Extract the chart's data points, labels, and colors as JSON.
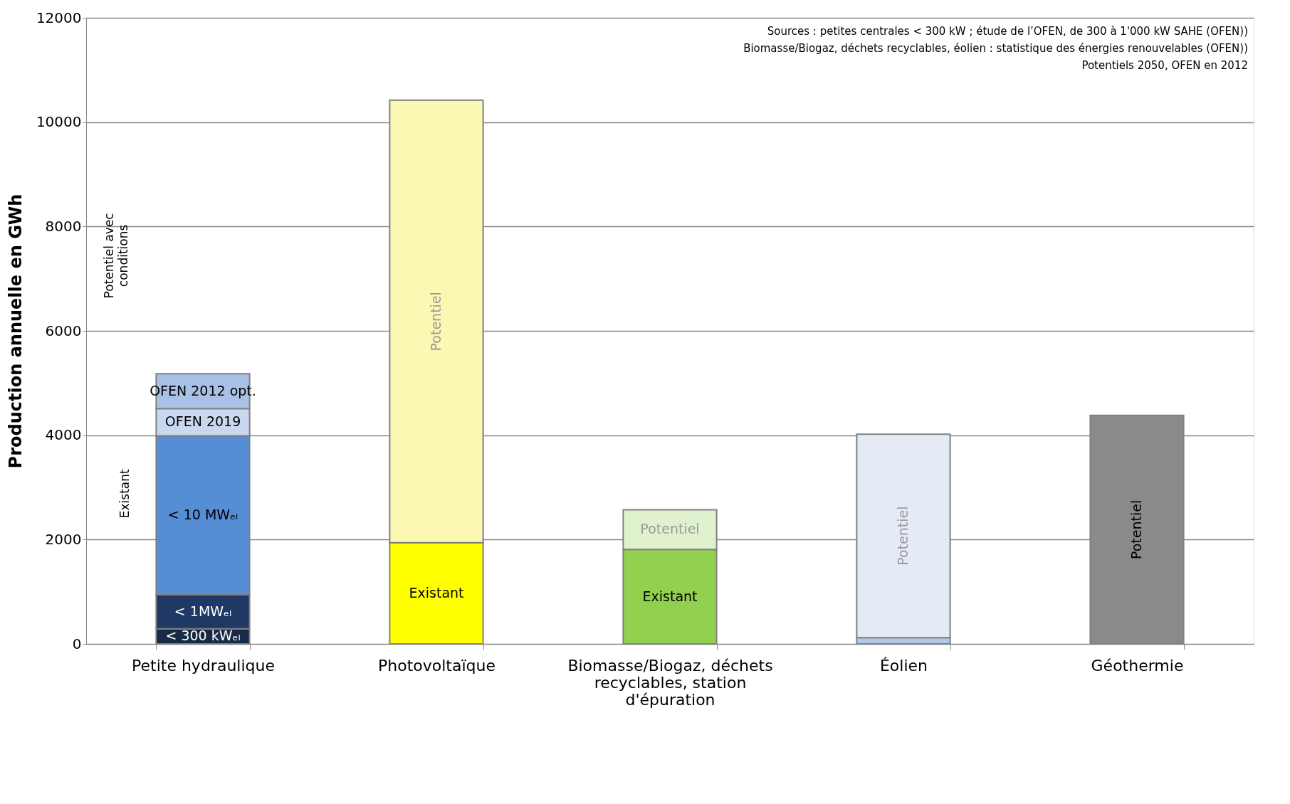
{
  "chart_data": {
    "type": "bar",
    "stacked": true,
    "ylabel": "Production annuelle en GWh",
    "categories": [
      "Petite hydraulique",
      "Photovoltaïque",
      "Biomasse/Biogaz, déchets recyclables, station d'épuration",
      "Éolien",
      "Géothermie"
    ],
    "series": [
      {
        "colors": [
          "#172a47",
          "#ffff00",
          "#92d050",
          "#b4c7e7",
          null
        ],
        "values": [
          290,
          1940,
          1810,
          120,
          null
        ],
        "value_labels": [
          "< 300 kWₑₗ",
          "Existant",
          "Existant",
          null,
          null
        ]
      },
      {
        "colors": [
          "#1f3864",
          null,
          null,
          null,
          null
        ],
        "values": [
          650,
          null,
          null,
          null,
          null
        ],
        "value_labels": [
          "< 1MWₑₗ",
          null,
          null,
          null,
          null
        ]
      },
      {
        "colors": [
          "#558ed5",
          null,
          null,
          null,
          null
        ],
        "values": [
          3050,
          null,
          null,
          null,
          null
        ],
        "value_labels": [
          "< 10 MWₑₗ",
          null,
          null,
          null,
          null
        ]
      },
      {
        "colors": [
          "#c9d8ef",
          "#fbf8b4",
          "#e0f2cd",
          "#e4ebf6",
          "#8a8a8a"
        ],
        "values": [
          520,
          8480,
          760,
          3900,
          4380
        ],
        "value_labels": [
          "OFEN 2019",
          "Potentiel",
          "Potentiel",
          "Potentiel",
          "Potentiel"
        ]
      },
      {
        "colors": [
          "#a9c1e6",
          null,
          null,
          null,
          null
        ],
        "values": [
          670,
          null,
          null,
          null,
          null
        ],
        "value_labels": [
          "OFEN 2012 opt.",
          null,
          null,
          null,
          null
        ]
      }
    ],
    "ylim": [
      0,
      12000
    ],
    "yticks": [
      0,
      2000,
      4000,
      6000,
      8000,
      10000,
      12000
    ],
    "grid": "y",
    "annotations": [
      "Potentiel avec conditions",
      "Existant",
      "Sources : petites centrales < 300 kW ; étude de l’OFEN, de 300 à 1'000 kW SAHE (OFEN))",
      "Biomasse/Biogaz, déchets recyclables, éolien : statistique des énergies renouvelables (OFEN))",
      "Potentiels 2050, OFEN en 2012"
    ]
  }
}
